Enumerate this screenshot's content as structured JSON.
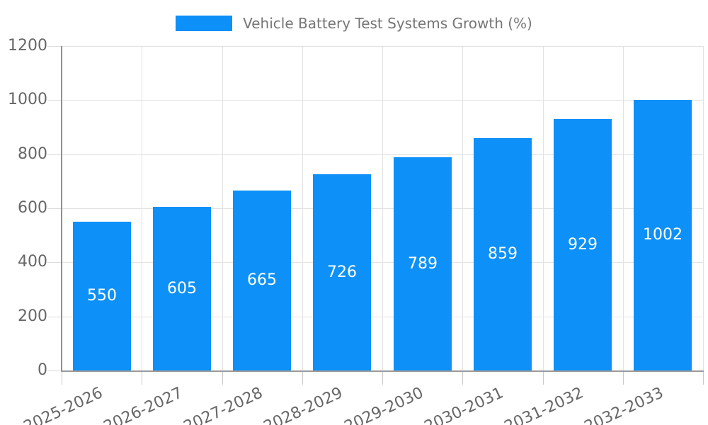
{
  "chart_data": {
    "type": "bar",
    "title": "Vehicle Battery Test Systems Growth (%)",
    "categories": [
      "2025-2026",
      "2026-2027",
      "2027-2028",
      "2028-2029",
      "2029-2030",
      "2030-2031",
      "2031-2032",
      "2032-2033"
    ],
    "values": [
      550,
      605,
      665,
      726,
      789,
      859,
      929,
      1002
    ],
    "xlabel": "",
    "ylabel": "",
    "ylim": [
      0,
      1200
    ],
    "yticks": [
      0,
      200,
      400,
      600,
      800,
      1000,
      1200
    ],
    "grid": true,
    "legend_position": "top",
    "x_tick_rotation_deg": -25,
    "bar_color": "#0d90f8",
    "value_label_color": "#ffffff",
    "gridline_color": "#e2e2e2",
    "axis_color": "#9a9a9a",
    "tick_text_color": "#666666",
    "title_color": "#757575"
  }
}
